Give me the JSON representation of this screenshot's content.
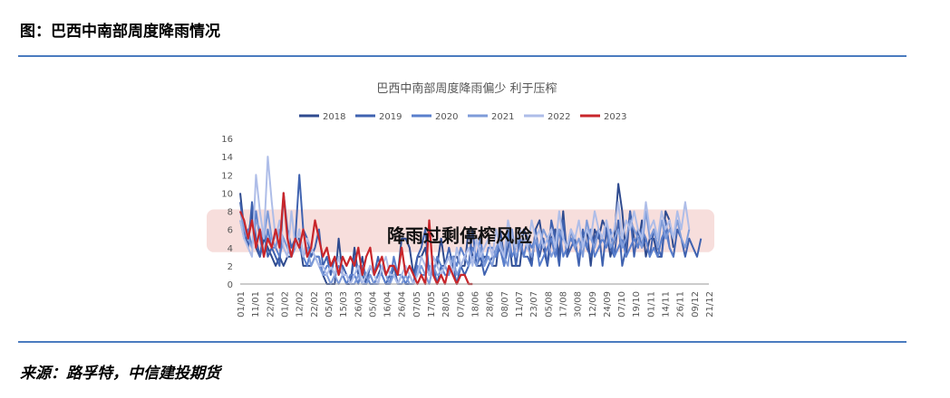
{
  "header": {
    "figure_title": "图：巴西中南部周度降雨情况"
  },
  "footer": {
    "source": "来源：路孚特，中信建投期货"
  },
  "chart_data": {
    "type": "line",
    "title": "巴西中南部周度降雨偏少 利于压榨",
    "ylim": [
      0,
      16
    ],
    "yticks": [
      0,
      2,
      4,
      6,
      8,
      10,
      12,
      14,
      16
    ],
    "x_tick_labels": [
      "01/01",
      "11/01",
      "22/01",
      "01/02",
      "12/02",
      "22/02",
      "05/03",
      "15/03",
      "26/03",
      "05/04",
      "16/04",
      "26/04",
      "07/05",
      "17/05",
      "28/05",
      "07/06",
      "18/06",
      "28/06",
      "08/07",
      "11/07",
      "23/07",
      "05/08",
      "17/08",
      "30/08",
      "12/09",
      "24/09",
      "07/10",
      "19/10",
      "01/11",
      "14/11",
      "26/11",
      "09/12",
      "21/12"
    ],
    "annotation": {
      "text": "降雨过剩停榨风险",
      "y_range": [
        3.5,
        8.2
      ],
      "color": "#f7dedc"
    },
    "grid": false,
    "legend_position": "top",
    "colors": {
      "2018": "#2f4b8f",
      "2019": "#3f62b0",
      "2020": "#5a7fcc",
      "2021": "#7e9bd9",
      "2022": "#aebde8",
      "2023": "#c8262b"
    },
    "series": [
      {
        "name": "2018",
        "values": [
          10,
          6,
          5,
          8,
          4,
          3,
          5,
          4,
          3,
          2,
          3,
          2,
          3,
          3,
          5,
          5,
          2,
          2,
          2,
          3,
          3,
          1,
          0,
          0,
          0,
          5,
          1,
          0,
          0,
          4,
          1,
          3,
          0,
          1,
          0,
          1,
          2,
          1,
          0,
          2,
          1,
          5,
          5,
          4,
          1,
          3,
          3,
          4,
          1,
          3,
          2,
          5,
          2,
          1,
          3,
          3,
          2,
          2,
          6,
          3,
          2,
          2,
          3,
          3,
          2,
          2,
          6,
          3,
          6,
          2,
          2,
          2,
          6,
          5,
          2,
          6,
          7,
          4,
          2,
          5,
          6,
          3,
          8,
          3,
          6,
          4,
          3,
          5,
          6,
          2,
          6,
          5,
          7,
          6,
          3,
          5,
          11,
          8,
          3,
          8,
          5,
          4,
          7,
          3,
          5,
          5,
          3,
          3,
          8,
          7,
          4
        ]
      },
      {
        "name": "2019",
        "values": [
          9,
          6,
          4,
          9,
          5,
          3,
          6,
          3,
          4,
          3,
          2,
          10,
          6,
          4,
          5,
          12,
          6,
          5,
          3,
          4,
          6,
          2,
          3,
          1,
          3,
          1,
          2,
          1,
          0,
          3,
          1,
          1,
          0,
          2,
          1,
          3,
          1,
          0,
          1,
          2,
          0,
          1,
          0,
          0,
          0,
          3,
          4,
          6,
          1,
          2,
          0,
          2,
          2,
          4,
          2,
          0,
          2,
          1,
          2,
          6,
          2,
          3,
          1,
          2,
          3,
          3,
          4,
          2,
          4,
          6,
          2,
          5,
          3,
          3,
          2,
          6,
          3,
          5,
          2,
          7,
          5,
          2,
          7,
          3,
          4,
          5,
          2,
          6,
          4,
          3,
          5,
          6,
          2,
          6,
          4,
          3,
          7,
          2,
          4,
          8,
          3,
          6,
          4,
          5,
          3,
          6,
          4,
          3,
          7,
          4,
          3,
          6,
          5,
          3,
          5,
          4,
          3,
          5
        ]
      },
      {
        "name": "2020",
        "values": [
          7,
          5,
          6,
          4,
          8,
          5,
          3,
          6,
          4,
          4,
          3,
          5,
          4,
          3,
          5,
          4,
          3,
          2,
          4,
          3,
          3,
          1,
          2,
          2,
          1,
          2,
          1,
          0,
          1,
          1,
          0,
          2,
          1,
          0,
          0,
          1,
          1,
          0,
          0,
          3,
          1,
          1,
          0,
          1,
          0,
          2,
          1,
          1,
          2,
          1,
          3,
          2,
          1,
          1,
          3,
          2,
          4,
          3,
          2,
          4,
          3,
          5,
          2,
          4,
          4,
          3,
          5,
          2,
          6,
          3,
          4,
          5,
          3,
          5,
          4,
          5,
          2,
          3,
          4,
          5,
          3,
          6,
          3,
          4,
          5,
          4,
          3,
          5,
          4,
          6,
          3,
          4,
          5,
          4,
          6,
          3,
          4,
          5,
          3,
          4,
          5,
          4,
          6,
          5,
          3,
          4,
          3,
          5,
          6,
          4,
          3
        ]
      },
      {
        "name": "2021",
        "values": [
          8,
          6,
          5,
          4,
          7,
          6,
          5,
          8,
          5,
          4,
          6,
          5,
          4,
          3,
          4,
          6,
          3,
          4,
          2,
          3,
          2,
          1,
          1,
          0,
          1,
          0,
          1,
          1,
          0,
          0,
          1,
          0,
          0,
          1,
          0,
          0,
          2,
          1,
          0,
          1,
          0,
          0,
          1,
          0,
          0,
          1,
          2,
          1,
          0,
          2,
          1,
          1,
          2,
          1,
          3,
          1,
          2,
          3,
          2,
          3,
          2,
          4,
          2,
          3,
          2,
          4,
          5,
          3,
          2,
          6,
          3,
          4,
          5,
          4,
          3,
          5,
          4,
          6,
          5,
          3,
          4,
          6,
          5,
          4,
          6,
          4,
          5,
          3,
          7,
          5,
          4,
          6,
          5,
          7,
          4,
          5,
          6,
          4,
          5,
          7,
          6,
          5,
          4,
          8,
          5,
          6,
          4,
          7,
          5,
          6,
          5,
          7,
          5,
          4,
          6
        ]
      },
      {
        "name": "2022",
        "values": [
          7,
          5,
          4,
          3,
          12,
          8,
          5,
          14,
          9,
          5,
          7,
          4,
          3,
          8,
          4,
          6,
          3,
          5,
          4,
          3,
          2,
          2,
          1,
          2,
          1,
          3,
          1,
          1,
          0,
          1,
          2,
          0,
          1,
          2,
          1,
          0,
          2,
          3,
          1,
          1,
          0,
          1,
          2,
          1,
          0,
          1,
          3,
          2,
          1,
          3,
          2,
          1,
          2,
          3,
          1,
          4,
          2,
          3,
          4,
          2,
          5,
          3,
          4,
          5,
          3,
          6,
          4,
          3,
          7,
          5,
          4,
          6,
          5,
          4,
          7,
          5,
          6,
          4,
          5,
          6,
          4,
          8,
          5,
          4,
          6,
          5,
          7,
          4,
          6,
          5,
          8,
          6,
          5,
          7,
          5,
          6,
          9,
          5,
          7,
          6,
          8,
          6,
          5,
          9,
          6,
          7,
          5,
          8,
          6,
          7,
          5,
          8,
          6,
          9,
          6
        ]
      },
      {
        "name": "2023",
        "values": [
          8,
          7,
          5,
          7,
          4,
          6,
          3,
          5,
          4,
          6,
          4,
          10,
          5,
          3,
          5,
          4,
          6,
          3,
          4,
          7,
          5,
          3,
          4,
          2,
          3,
          1,
          3,
          2,
          3,
          2,
          4,
          1,
          3,
          4,
          1,
          2,
          3,
          1,
          2,
          2,
          1,
          4,
          1,
          2,
          1,
          0,
          1,
          0,
          7,
          1,
          0,
          1,
          0,
          2,
          1,
          0,
          1,
          1,
          0,
          0
        ]
      }
    ]
  }
}
